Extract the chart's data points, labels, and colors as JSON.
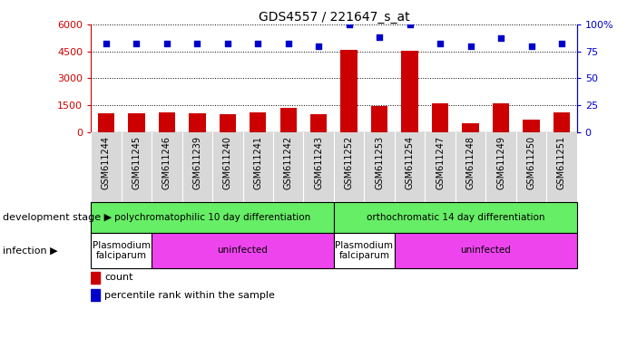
{
  "title": "GDS4557 / 221647_s_at",
  "samples": [
    "GSM611244",
    "GSM611245",
    "GSM611246",
    "GSM611239",
    "GSM611240",
    "GSM611241",
    "GSM611242",
    "GSM611243",
    "GSM611252",
    "GSM611253",
    "GSM611254",
    "GSM611247",
    "GSM611248",
    "GSM611249",
    "GSM611250",
    "GSM611251"
  ],
  "counts": [
    1050,
    1060,
    1100,
    1070,
    1000,
    1080,
    1350,
    1000,
    4600,
    1450,
    4550,
    1600,
    500,
    1600,
    700,
    1100
  ],
  "percentiles": [
    82,
    82,
    82,
    82,
    82,
    82,
    82,
    80,
    100,
    88,
    100,
    82,
    80,
    87,
    80,
    82
  ],
  "ylim_left": [
    0,
    6000
  ],
  "yticks_left": [
    0,
    1500,
    3000,
    4500,
    6000
  ],
  "ylim_right": [
    0,
    100
  ],
  "yticks_right": [
    0,
    25,
    50,
    75,
    100
  ],
  "bar_color": "#cc0000",
  "dot_color": "#0000cc",
  "left_axis_color": "#cc0000",
  "right_axis_color": "#0000cc",
  "dev_stage_color": "#66ee66",
  "infection_color": "#ee44ee",
  "plasmodium_color": "#ffffff",
  "title_fontsize": 10,
  "tick_label_fontsize": 7,
  "dev_inf_label_fontsize": 8,
  "legend_fontsize": 8,
  "annotation_fontsize": 7.5
}
